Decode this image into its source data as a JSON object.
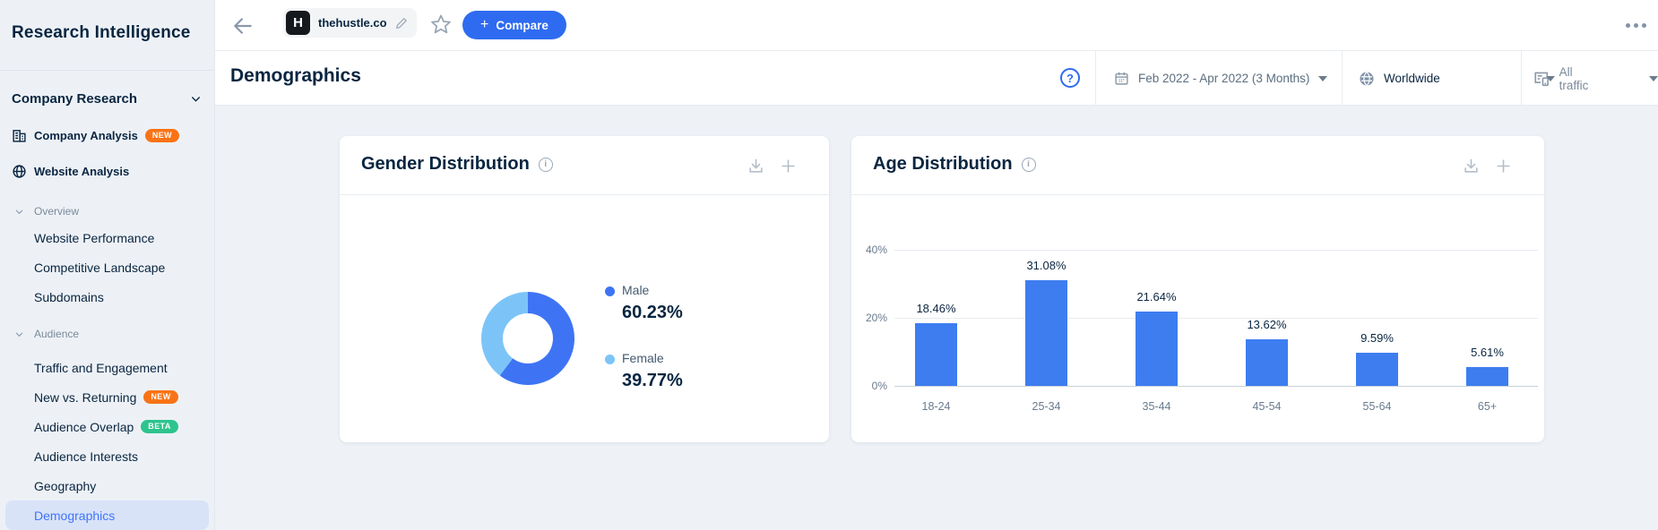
{
  "sidebar": {
    "title": "Research Intelligence",
    "section": {
      "label": "Company Research"
    },
    "top_items": [
      {
        "label": "Company Analysis",
        "badge": "NEW"
      },
      {
        "label": "Website Analysis"
      }
    ],
    "groups": [
      {
        "label": "Overview",
        "items": [
          {
            "label": "Website Performance"
          },
          {
            "label": "Competitive Landscape"
          },
          {
            "label": "Subdomains"
          }
        ]
      },
      {
        "label": "Audience",
        "items": [
          {
            "label": "Traffic and Engagement"
          },
          {
            "label": "New vs. Returning",
            "badge": "NEW"
          },
          {
            "label": "Audience Overlap",
            "badge": "BETA"
          },
          {
            "label": "Audience Interests"
          },
          {
            "label": "Geography"
          },
          {
            "label": "Demographics",
            "selected": true
          }
        ]
      }
    ]
  },
  "topbar": {
    "site": "thehustle.co",
    "site_initial": "H",
    "compare_plus": "+",
    "compare": "Compare"
  },
  "header": {
    "title": "Demographics",
    "help": "?",
    "date_range": "Feb 2022 - Apr 2022 (3 Months)",
    "region": "Worldwide",
    "traffic": "All traffic"
  },
  "cards": {
    "gender": {
      "title": "Gender Distribution",
      "info": "i"
    },
    "age": {
      "title": "Age Distribution",
      "info": "i"
    }
  },
  "chart_data": [
    {
      "type": "pie",
      "title": "Gender Distribution",
      "donut": true,
      "legend_position": "right",
      "series": [
        {
          "name": "Male",
          "value": 60.23,
          "label": "60.23%",
          "color": "#3e74f4"
        },
        {
          "name": "Female",
          "value": 39.77,
          "label": "39.77%",
          "color": "#7cc4f8"
        }
      ]
    },
    {
      "type": "bar",
      "title": "Age Distribution",
      "categories": [
        "18-24",
        "25-34",
        "35-44",
        "45-54",
        "55-64",
        "65+"
      ],
      "values": [
        18.46,
        31.08,
        21.64,
        13.62,
        9.59,
        5.61
      ],
      "value_labels": [
        "18.46%",
        "31.08%",
        "21.64%",
        "13.62%",
        "9.59%",
        "5.61%"
      ],
      "yticks": [
        {
          "label": "0%",
          "value": 0
        },
        {
          "label": "20%",
          "value": 20
        },
        {
          "label": "40%",
          "value": 40
        }
      ],
      "ylim": [
        0,
        45
      ],
      "xlabel": "",
      "ylabel": "",
      "grid": "horizontal",
      "bar_color": "#3e7df0"
    }
  ],
  "colors": {
    "accent_blue": "#2e6bf0",
    "link_blue": "#3e74fe",
    "navy_text": "#092540",
    "male_blue": "#3e74f4",
    "female_blue": "#7cc4f8",
    "bar_blue": "#3e7df0",
    "badge_new_orange": "#f97316",
    "badge_beta_green": "#2dc48d",
    "selected_row_bg": "#d9e3f8",
    "content_bg": "#eef2f7"
  }
}
